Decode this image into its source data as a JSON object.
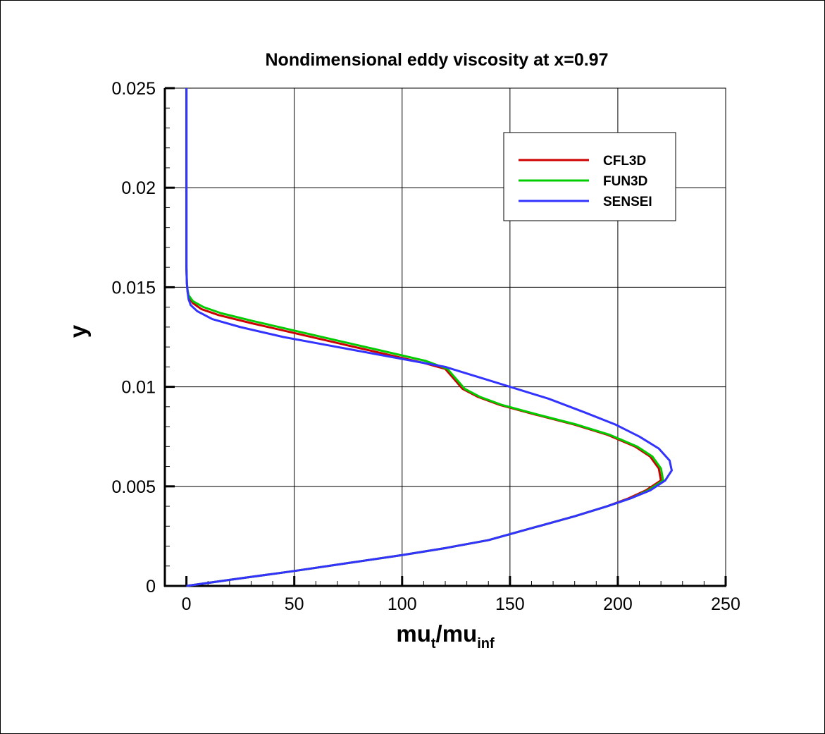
{
  "chart_data": {
    "type": "line",
    "title": "Nondimensional eddy viscosity at x=0.97",
    "xlabel": {
      "base": "mu",
      "sub1": "t",
      "sep": "/mu",
      "sub2": "inf"
    },
    "ylabel": "y",
    "xlim": [
      0,
      250
    ],
    "ylim": [
      0,
      0.025
    ],
    "xticks": [
      "0",
      "50",
      "100",
      "150",
      "200",
      "250"
    ],
    "yticks": [
      "0",
      "0.005",
      "0.01",
      "0.015",
      "0.02",
      "0.025"
    ],
    "grid": true,
    "legend_position": "top-right",
    "series": [
      {
        "name": "CFL3D",
        "color": "#cc0000",
        "points": [
          [
            0,
            0
          ],
          [
            25,
            0.00038
          ],
          [
            50,
            0.00075
          ],
          [
            75,
            0.00115
          ],
          [
            100,
            0.00155
          ],
          [
            120,
            0.0019
          ],
          [
            140,
            0.0023
          ],
          [
            160,
            0.0029
          ],
          [
            180,
            0.0035
          ],
          [
            195,
            0.004
          ],
          [
            205,
            0.0044
          ],
          [
            213,
            0.0048
          ],
          [
            220,
            0.0053
          ],
          [
            219,
            0.0059
          ],
          [
            215,
            0.0065
          ],
          [
            208,
            0.007
          ],
          [
            195,
            0.0076
          ],
          [
            180,
            0.0081
          ],
          [
            162,
            0.0086
          ],
          [
            145,
            0.0091
          ],
          [
            135,
            0.0095
          ],
          [
            128,
            0.0099
          ],
          [
            120,
            0.0109
          ],
          [
            110,
            0.0112
          ],
          [
            90,
            0.0117
          ],
          [
            70,
            0.0122
          ],
          [
            50,
            0.0127
          ],
          [
            30,
            0.0132
          ],
          [
            15,
            0.0136
          ],
          [
            7,
            0.0139
          ],
          [
            3,
            0.0142
          ],
          [
            1,
            0.0145
          ],
          [
            0.5,
            0.0148
          ],
          [
            0.2,
            0.0152
          ],
          [
            0,
            0.016
          ],
          [
            0,
            0.025
          ]
        ]
      },
      {
        "name": "FUN3D",
        "color": "#00cc00",
        "points": [
          [
            0,
            0
          ],
          [
            25,
            0.00038
          ],
          [
            50,
            0.00075
          ],
          [
            75,
            0.00115
          ],
          [
            100,
            0.00155
          ],
          [
            120,
            0.0019
          ],
          [
            140,
            0.0023
          ],
          [
            160,
            0.0029
          ],
          [
            180,
            0.0035
          ],
          [
            195,
            0.004
          ],
          [
            206,
            0.0044
          ],
          [
            214,
            0.0048
          ],
          [
            221,
            0.0053
          ],
          [
            220,
            0.0059
          ],
          [
            216,
            0.0065
          ],
          [
            209,
            0.007
          ],
          [
            196,
            0.0076
          ],
          [
            181,
            0.0081
          ],
          [
            163,
            0.0086
          ],
          [
            146,
            0.0091
          ],
          [
            136,
            0.0095
          ],
          [
            129,
            0.0099
          ],
          [
            121,
            0.0109
          ],
          [
            111,
            0.0113
          ],
          [
            91,
            0.0118
          ],
          [
            71,
            0.0123
          ],
          [
            51,
            0.0128
          ],
          [
            31,
            0.0133
          ],
          [
            16,
            0.0137
          ],
          [
            8,
            0.014
          ],
          [
            3,
            0.0143
          ],
          [
            1,
            0.0146
          ],
          [
            0.5,
            0.0149
          ],
          [
            0.2,
            0.0152
          ],
          [
            0,
            0.016
          ],
          [
            0,
            0.025
          ]
        ]
      },
      {
        "name": "SENSEI",
        "color": "#3333ff",
        "points": [
          [
            0,
            0
          ],
          [
            25,
            0.00038
          ],
          [
            50,
            0.00075
          ],
          [
            75,
            0.00115
          ],
          [
            100,
            0.00155
          ],
          [
            120,
            0.0019
          ],
          [
            140,
            0.0023
          ],
          [
            160,
            0.0029
          ],
          [
            180,
            0.0035
          ],
          [
            195,
            0.004
          ],
          [
            206,
            0.0044
          ],
          [
            215,
            0.0048
          ],
          [
            222,
            0.0053
          ],
          [
            225,
            0.0058
          ],
          [
            224,
            0.0063
          ],
          [
            219,
            0.0069
          ],
          [
            210,
            0.0075
          ],
          [
            199,
            0.0081
          ],
          [
            185,
            0.0087
          ],
          [
            168,
            0.0094
          ],
          [
            150,
            0.01
          ],
          [
            135,
            0.0105
          ],
          [
            120,
            0.011
          ],
          [
            105,
            0.0113
          ],
          [
            85,
            0.0117
          ],
          [
            65,
            0.0121
          ],
          [
            45,
            0.0125
          ],
          [
            25,
            0.013
          ],
          [
            12,
            0.0134
          ],
          [
            5,
            0.0138
          ],
          [
            2,
            0.0141
          ],
          [
            1,
            0.0144
          ],
          [
            0.5,
            0.0148
          ],
          [
            0.2,
            0.0152
          ],
          [
            0,
            0.016
          ],
          [
            0,
            0.025
          ]
        ]
      }
    ]
  }
}
